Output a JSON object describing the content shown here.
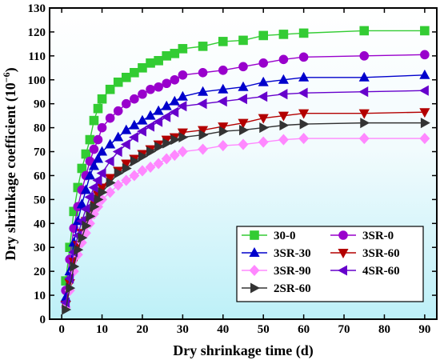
{
  "chart_data": {
    "type": "line",
    "xlabel": "Dry shrinkage time (d)",
    "ylabel_main": "Dry shrinkage coefficient (10",
    "ylabel_sup": "−6",
    "ylabel_close": ")",
    "xlim": [
      -3,
      93
    ],
    "ylim": [
      0,
      130
    ],
    "xticks": [
      0,
      10,
      20,
      30,
      40,
      50,
      60,
      70,
      80,
      90
    ],
    "yticks": [
      0,
      10,
      20,
      30,
      40,
      50,
      60,
      70,
      80,
      90,
      100,
      110,
      120,
      130
    ],
    "background": "light blue gradient",
    "legend_position": "bottom-right",
    "x": [
      1,
      2,
      3,
      4,
      5,
      6,
      7,
      8,
      9,
      10,
      12,
      14,
      16,
      18,
      20,
      22,
      24,
      26,
      28,
      30,
      35,
      40,
      45,
      50,
      55,
      60,
      75,
      90
    ],
    "series": [
      {
        "name": "30-0",
        "marker": "square",
        "color": "#33cc33",
        "values": [
          16,
          30,
          45,
          55,
          63,
          69,
          75,
          83,
          88,
          92,
          96,
          99,
          101,
          103,
          105,
          107,
          108,
          110,
          111,
          113,
          114,
          116,
          116.5,
          118.5,
          119,
          119.5,
          120.5,
          120.5
        ]
      },
      {
        "name": "3SR-0",
        "marker": "circle",
        "color": "#9900cc",
        "values": [
          12,
          25,
          38,
          47,
          54,
          60,
          66,
          71,
          75,
          80,
          84,
          87,
          90,
          92,
          94,
          96,
          97,
          98.5,
          100,
          102,
          103,
          104,
          105.5,
          107,
          108.5,
          109.5,
          110,
          110.5
        ]
      },
      {
        "name": "3SR-30",
        "marker": "triangle-up",
        "color": "#0000cc",
        "values": [
          9,
          20,
          32,
          41,
          48,
          54,
          60,
          64,
          67,
          70,
          73,
          76,
          79,
          81,
          83,
          85,
          87,
          89,
          91,
          93,
          95,
          96,
          97,
          99,
          100,
          101,
          101,
          102
        ]
      },
      {
        "name": "3SR-60",
        "marker": "triangle-down",
        "color": "#b30000",
        "values": [
          6,
          15,
          24,
          31,
          36,
          41,
          45,
          49,
          52,
          55,
          59,
          62,
          65,
          67,
          69,
          71,
          73,
          75,
          76,
          78,
          79,
          80.5,
          82,
          84,
          85,
          86,
          86,
          86.5
        ]
      },
      {
        "name": "3SR-90",
        "marker": "diamond",
        "color": "#ff88ff",
        "values": [
          5,
          12,
          20,
          27,
          32,
          36,
          40,
          44,
          47,
          50,
          53,
          56,
          58,
          60,
          62,
          63.5,
          65,
          67,
          68.5,
          70,
          71,
          72.5,
          73,
          74,
          75,
          75.5,
          75.5,
          75.5
        ]
      },
      {
        "name": "4SR-60",
        "marker": "triangle-left",
        "color": "#6600cc",
        "values": [
          7,
          17,
          28,
          35,
          41,
          46,
          51,
          55,
          58,
          61,
          66,
          70,
          73,
          76,
          78.5,
          80.5,
          82.5,
          84.5,
          86.5,
          89,
          90,
          91,
          92,
          93,
          94,
          94.5,
          95,
          95.5
        ]
      },
      {
        "name": "2SR-60",
        "marker": "triangle-right",
        "color": "#333333",
        "values": [
          4,
          13,
          22,
          29,
          34,
          39,
          43,
          47,
          50,
          53,
          57,
          61,
          63,
          66,
          68,
          70,
          72,
          73.5,
          75,
          76,
          77,
          78.5,
          79,
          80,
          81,
          81.5,
          82,
          82
        ]
      }
    ]
  }
}
